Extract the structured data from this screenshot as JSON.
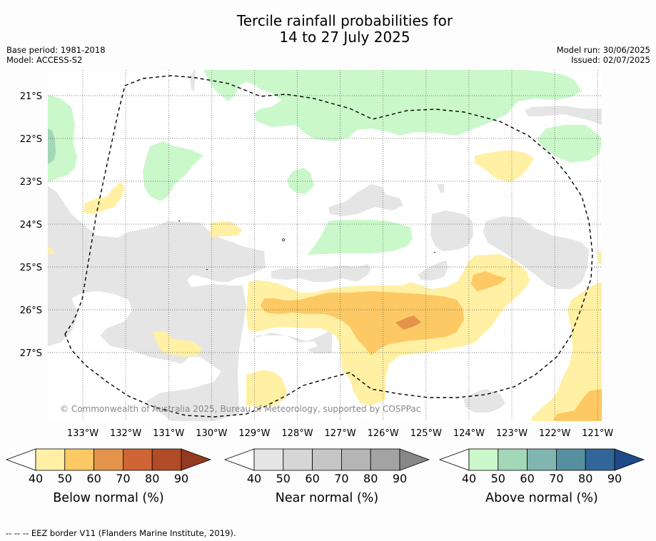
{
  "title_line1": "Tercile rainfall probabilities for",
  "title_line2": "14 to 27 July 2025",
  "base_period": "Base period: 1981-2018",
  "model": "Model: ACCESS-S2",
  "model_run": "Model run: 30/06/2025",
  "issued": "Issued: 02/07/2025",
  "lat_labels": [
    "21°S",
    "22°S",
    "23°S",
    "24°S",
    "25°S",
    "26°S",
    "27°S"
  ],
  "lon_labels": [
    "133°W",
    "132°W",
    "131°W",
    "130°W",
    "129°W",
    "128°W",
    "127°W",
    "126°W",
    "125°W",
    "124°W",
    "123°W",
    "122°W",
    "121°W"
  ],
  "copyright": "© Commonwealth of Australia 2025, Bureau of Meteorology, supported by COSPPac",
  "colorbars": [
    {
      "title": "Below normal (%)",
      "ticks": [
        "40",
        "50",
        "60",
        "70",
        "80",
        "90"
      ],
      "colors": [
        "#fff0a4",
        "#fdc964",
        "#e3944a",
        "#cf6535",
        "#b24c28",
        "#943a20"
      ]
    },
    {
      "title": "Near normal (%)",
      "ticks": [
        "40",
        "50",
        "60",
        "70",
        "80",
        "90"
      ],
      "colors": [
        "#e5e5e5",
        "#d6d6d6",
        "#c6c6c6",
        "#b5b5b5",
        "#a3a3a3",
        "#888888"
      ]
    },
    {
      "title": "Above normal (%)",
      "ticks": [
        "40",
        "50",
        "60",
        "70",
        "80",
        "90"
      ],
      "colors": [
        "#caf8ca",
        "#a2d7b7",
        "#80b5b0",
        "#5690a0",
        "#336698",
        "#1d4b85"
      ]
    }
  ],
  "footer": "--  --  -- EEZ border V11 (Flanders Marine Institute, 2019).",
  "colors": {
    "below_50": "#fff0a4",
    "below_60": "#fdc964",
    "below_70": "#e3944a",
    "near_40": "#e5e5e5",
    "above_50": "#caf8ca",
    "above_60": "#a2d7b7",
    "above_70": "#80b5b0"
  }
}
